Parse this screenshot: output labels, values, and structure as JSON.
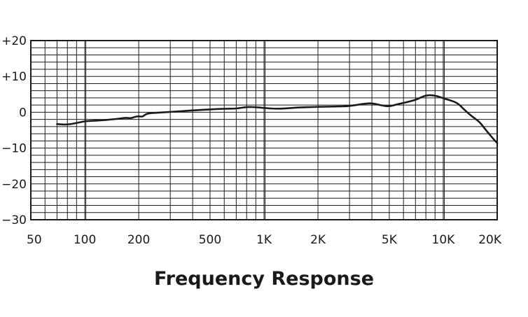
{
  "chart_data": {
    "type": "line",
    "title": "Frequency Response",
    "xlabel": "",
    "ylabel": "",
    "x_scale": "log",
    "xlim": [
      50,
      20000
    ],
    "ylim": [
      -30,
      20
    ],
    "grid": true,
    "x_ticks": [
      {
        "value": 50,
        "label": "50"
      },
      {
        "value": 100,
        "label": "100"
      },
      {
        "value": 200,
        "label": "200"
      },
      {
        "value": 500,
        "label": "500"
      },
      {
        "value": 1000,
        "label": "1K"
      },
      {
        "value": 2000,
        "label": "2K"
      },
      {
        "value": 5000,
        "label": "5K"
      },
      {
        "value": 10000,
        "label": "10K"
      },
      {
        "value": 20000,
        "label": "20K"
      }
    ],
    "y_ticks": [
      {
        "value": 20,
        "label": "+20"
      },
      {
        "value": 10,
        "label": "+10"
      },
      {
        "value": 0,
        "label": "0"
      },
      {
        "value": -10,
        "label": "−10"
      },
      {
        "value": -20,
        "label": "−20"
      },
      {
        "value": -30,
        "label": "−30"
      }
    ],
    "series": [
      {
        "x": [
          70,
          80,
          90,
          100,
          120,
          150,
          170,
          180,
          190,
          200,
          210,
          220,
          240,
          300,
          400,
          500,
          600,
          700,
          800,
          900,
          1000,
          1200,
          1500,
          2000,
          2500,
          3000,
          3500,
          4000,
          4500,
          5000,
          5500,
          6000,
          7000,
          8000,
          9000,
          10000,
          11000,
          12000,
          13000,
          14000,
          15000,
          16000,
          17000,
          18000,
          19000,
          20000
        ],
        "y": [
          -3.3,
          -3.5,
          -3.0,
          -2.5,
          -2.3,
          -1.9,
          -1.5,
          -1.7,
          -1.3,
          -1.1,
          -1.3,
          -0.4,
          -0.2,
          0.1,
          0.5,
          0.8,
          1.0,
          1.0,
          1.5,
          1.4,
          1.2,
          0.9,
          1.3,
          1.5,
          1.6,
          1.7,
          2.3,
          2.6,
          1.9,
          1.6,
          2.2,
          2.6,
          3.4,
          4.8,
          4.7,
          3.9,
          3.3,
          2.6,
          0.9,
          -0.6,
          -1.7,
          -2.8,
          -4.5,
          -6.0,
          -7.4,
          -8.6
        ]
      }
    ]
  }
}
